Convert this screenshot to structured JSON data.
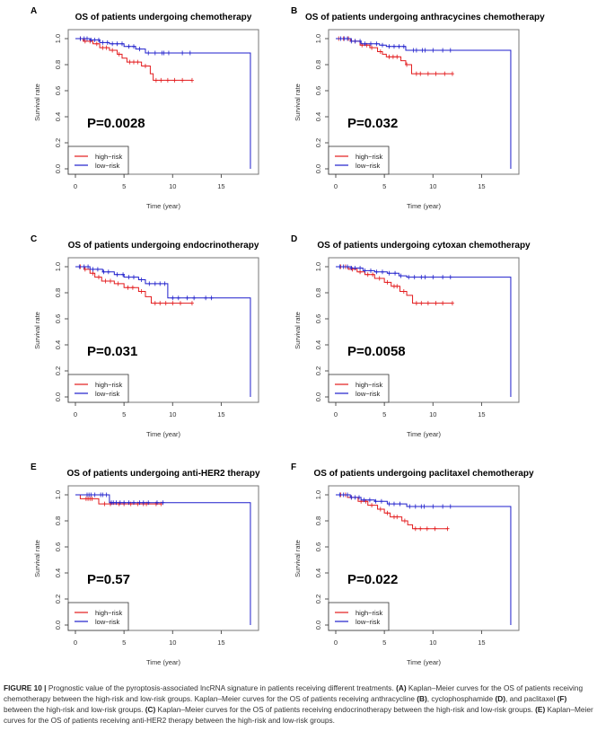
{
  "caption": {
    "label": "FIGURE 10 |",
    "text1": " Prognostic value of the pyroptosis-associated lncRNA signature in patients receiving different treatments. ",
    "a": "(A)",
    "text2": " Kaplan–Meier curves for the OS of patients receiving chemotherapy between the high-risk and low-risk groups. Kaplan–Meier curves for the OS of patients receiving anthracycline ",
    "b": "(B)",
    "text3": ", cyclophosphamide ",
    "d": "(D)",
    "text4": ", and paclitaxel ",
    "f": "(F)",
    "text5": " between the high-risk and low-risk groups. ",
    "c": "(C)",
    "text6": " Kaplan–Meier curves for the OS of patients receiving endocrinotherapy between the high-risk and low-risk groups. ",
    "e": "(E)",
    "text7": " Kaplan–Meier curves for the OS of patients receiving anti-HER2 therapy between the high-risk and low-risk groups."
  },
  "colors": {
    "high": "#e31a1c",
    "low": "#1f1fcc"
  },
  "chart_data": [
    {
      "panel": "A",
      "type": "line",
      "title": "OS of patients undergoing chemotherapy",
      "xlabel": "Time (year)",
      "ylabel": "Survival rate",
      "xlim": [
        0,
        18
      ],
      "ylim": [
        0,
        1
      ],
      "xticks": [
        "0",
        "5",
        "10",
        "15"
      ],
      "yticks": [
        "0.0",
        "0.2",
        "0.4",
        "0.6",
        "0.8",
        "1.0"
      ],
      "pvalue": "P=0.0028",
      "legend": [
        "high−risk",
        "low−risk"
      ],
      "legend_position": "bottom-left",
      "series": [
        {
          "name": "high-risk",
          "steps": [
            [
              0,
              1
            ],
            [
              0.8,
              0.98
            ],
            [
              1.8,
              0.96
            ],
            [
              2.5,
              0.93
            ],
            [
              3.5,
              0.91
            ],
            [
              4.3,
              0.88
            ],
            [
              4.8,
              0.85
            ],
            [
              5.3,
              0.82
            ],
            [
              6.8,
              0.79
            ],
            [
              7.7,
              0.73
            ],
            [
              8,
              0.68
            ]
          ],
          "end": 12,
          "censor": [
            0.5,
            1,
            1.5,
            2.2,
            2.8,
            3.2,
            3.8,
            4.5,
            5.6,
            6,
            6.4,
            7.2,
            8.3,
            8.8,
            9.5,
            10.2,
            11,
            12
          ]
        },
        {
          "name": "low-risk",
          "steps": [
            [
              0,
              1
            ],
            [
              1.5,
              0.99
            ],
            [
              2.5,
              0.97
            ],
            [
              3.5,
              0.96
            ],
            [
              5,
              0.94
            ],
            [
              6.2,
              0.92
            ],
            [
              7.2,
              0.89
            ]
          ],
          "end": 18,
          "endDrop": 0,
          "censor": [
            0.5,
            0.9,
            1.2,
            1.6,
            2,
            2.4,
            2.8,
            3.3,
            3.8,
            4.3,
            4.8,
            5.5,
            6,
            6.6,
            7.5,
            8.2,
            8.9,
            9.1,
            9.6,
            11,
            11.8
          ]
        }
      ]
    },
    {
      "panel": "B",
      "type": "line",
      "title": "OS of patients undergoing anthracycines chemotherapy",
      "xlabel": "Time (year)",
      "ylabel": "Survival rate",
      "xlim": [
        0,
        18
      ],
      "ylim": [
        0,
        1
      ],
      "xticks": [
        "0",
        "5",
        "10",
        "15"
      ],
      "yticks": [
        "0.0",
        "0.2",
        "0.4",
        "0.6",
        "0.8",
        "1.0"
      ],
      "pvalue": "P=0.032",
      "legend": [
        "high−risk",
        "low−risk"
      ],
      "legend_position": "bottom-left",
      "series": [
        {
          "name": "high-risk",
          "steps": [
            [
              0,
              1
            ],
            [
              1.5,
              0.98
            ],
            [
              2.5,
              0.95
            ],
            [
              3.5,
              0.93
            ],
            [
              4.3,
              0.9
            ],
            [
              4.8,
              0.88
            ],
            [
              5.2,
              0.86
            ],
            [
              6.7,
              0.83
            ],
            [
              7.2,
              0.8
            ],
            [
              7.8,
              0.73
            ]
          ],
          "end": 12,
          "censor": [
            0.3,
            0.8,
            1.3,
            2,
            2.7,
            3.2,
            3.7,
            4.6,
            5.5,
            5.9,
            6.3,
            7.3,
            8.3,
            8.7,
            9.5,
            10.3,
            11.2,
            12
          ]
        },
        {
          "name": "low-risk",
          "steps": [
            [
              0,
              1
            ],
            [
              1.6,
              0.98
            ],
            [
              2.6,
              0.96
            ],
            [
              4.5,
              0.95
            ],
            [
              5.2,
              0.94
            ],
            [
              7.2,
              0.91
            ]
          ],
          "end": 18,
          "endDrop": 0,
          "censor": [
            0.5,
            0.9,
            1.2,
            1.6,
            2,
            2.5,
            3,
            3.6,
            4.2,
            4.8,
            5.5,
            6,
            6.5,
            7,
            8,
            8.3,
            8.9,
            9.2,
            10,
            11,
            11.8
          ]
        }
      ]
    },
    {
      "panel": "C",
      "type": "line",
      "title": "OS of patients undergoing endocrinotherapy",
      "xlabel": "Time (year)",
      "ylabel": "Survival rate",
      "xlim": [
        0,
        18
      ],
      "ylim": [
        0,
        1
      ],
      "xticks": [
        "0",
        "5",
        "10",
        "15"
      ],
      "yticks": [
        "0.0",
        "0.2",
        "0.4",
        "0.6",
        "0.8",
        "1.0"
      ],
      "pvalue": "P=0.031",
      "legend": [
        "high−risk",
        "low−risk"
      ],
      "legend_position": "bottom-left",
      "series": [
        {
          "name": "high-risk",
          "steps": [
            [
              0,
              1
            ],
            [
              0.9,
              0.98
            ],
            [
              1.5,
              0.95
            ],
            [
              2,
              0.92
            ],
            [
              2.7,
              0.89
            ],
            [
              4,
              0.87
            ],
            [
              5,
              0.84
            ],
            [
              6.5,
              0.81
            ],
            [
              7.2,
              0.77
            ],
            [
              7.8,
              0.72
            ]
          ],
          "end": 12,
          "censor": [
            0.5,
            1,
            1.8,
            2.4,
            3.1,
            3.6,
            4.4,
            5.4,
            5.9,
            6.8,
            8.2,
            8.7,
            9.3,
            10,
            10.8,
            12
          ]
        },
        {
          "name": "low-risk",
          "steps": [
            [
              0,
              1
            ],
            [
              1.5,
              0.98
            ],
            [
              2.8,
              0.96
            ],
            [
              4,
              0.94
            ],
            [
              5,
              0.92
            ],
            [
              6.5,
              0.9
            ],
            [
              7.2,
              0.87
            ],
            [
              9.5,
              0.76
            ]
          ],
          "end": 18,
          "endDrop": 0,
          "censor": [
            0.4,
            0.9,
            1.3,
            1.8,
            2.3,
            2.9,
            3.4,
            4.3,
            4.9,
            5.5,
            6,
            6.8,
            7.6,
            8.2,
            8.7,
            9.2,
            10,
            10.6,
            11.5,
            12.2,
            13.4,
            14
          ]
        }
      ]
    },
    {
      "panel": "D",
      "type": "line",
      "title": "OS of patients undergoing cytoxan chemotherapy",
      "xlabel": "Time (year)",
      "ylabel": "Survival rate",
      "xlim": [
        0,
        18
      ],
      "ylim": [
        0,
        1
      ],
      "xticks": [
        "0",
        "5",
        "10",
        "15"
      ],
      "yticks": [
        "0.0",
        "0.2",
        "0.4",
        "0.6",
        "0.8",
        "1.0"
      ],
      "pvalue": "P=0.0058",
      "legend": [
        "high−risk",
        "low−risk"
      ],
      "legend_position": "bottom-left",
      "series": [
        {
          "name": "high-risk",
          "steps": [
            [
              0,
              1
            ],
            [
              1.3,
              0.98
            ],
            [
              2.2,
              0.96
            ],
            [
              3,
              0.94
            ],
            [
              4,
              0.91
            ],
            [
              5,
              0.88
            ],
            [
              5.7,
              0.85
            ],
            [
              6.6,
              0.81
            ],
            [
              7.3,
              0.78
            ],
            [
              7.9,
              0.72
            ]
          ],
          "end": 12,
          "censor": [
            0.5,
            1,
            1.7,
            2.5,
            3.3,
            3.8,
            4.5,
            5.3,
            6,
            6.3,
            7,
            8.3,
            8.8,
            9.5,
            10.3,
            11,
            12
          ]
        },
        {
          "name": "low-risk",
          "steps": [
            [
              0,
              1
            ],
            [
              1.6,
              0.99
            ],
            [
              2.8,
              0.97
            ],
            [
              4,
              0.96
            ],
            [
              5.3,
              0.95
            ],
            [
              6.5,
              0.93
            ],
            [
              7.3,
              0.92
            ]
          ],
          "end": 18,
          "endDrop": 0,
          "censor": [
            0.4,
            0.8,
            1.2,
            1.6,
            2,
            2.5,
            3,
            3.6,
            4.2,
            4.8,
            5.5,
            6.1,
            6.7,
            7.5,
            8.1,
            8.8,
            9.2,
            10,
            11,
            11.8
          ]
        }
      ]
    },
    {
      "panel": "E",
      "type": "line",
      "title": "OS of patients undergoing anti-HER2 therapy",
      "xlabel": "Time (year)",
      "ylabel": "Survival rate",
      "xlim": [
        0,
        18
      ],
      "ylim": [
        0,
        1
      ],
      "xticks": [
        "0",
        "5",
        "10",
        "15"
      ],
      "yticks": [
        "0.0",
        "0.2",
        "0.4",
        "0.6",
        "0.8",
        "1.0"
      ],
      "pvalue": "P=0.57",
      "legend": [
        "high−risk",
        "low−risk"
      ],
      "legend_position": "bottom-left",
      "series": [
        {
          "name": "high-risk",
          "steps": [
            [
              0,
              1
            ],
            [
              0.5,
              0.97
            ],
            [
              2.4,
              0.93
            ]
          ],
          "end": 8.8,
          "censor": [
            1.1,
            1.3,
            1.5,
            1.7,
            3,
            3.6,
            4.5,
            5,
            5.7,
            6.4,
            7,
            7.3,
            8.3,
            8.8
          ]
        },
        {
          "name": "low-risk",
          "steps": [
            [
              0,
              1
            ],
            [
              3.5,
              0.94
            ]
          ],
          "end": 18,
          "endDrop": 0,
          "censor": [
            1.2,
            1.4,
            1.6,
            2,
            2.6,
            2.8,
            3.2,
            3.7,
            3.9,
            4.2,
            4.6,
            5,
            5.5,
            6,
            6.6,
            7,
            7.5,
            8.4,
            9
          ]
        }
      ]
    },
    {
      "panel": "F",
      "type": "line",
      "title": "OS of patients undergoing paclitaxel chemotherapy",
      "xlabel": "Time (year)",
      "ylabel": "Survival rate",
      "xlim": [
        0,
        18
      ],
      "ylim": [
        0,
        1
      ],
      "xticks": [
        "0",
        "5",
        "10",
        "15"
      ],
      "yticks": [
        "0.0",
        "0.2",
        "0.4",
        "0.6",
        "0.8",
        "1.0"
      ],
      "pvalue": "P=0.022",
      "legend": [
        "high−risk",
        "low−risk"
      ],
      "legend_position": "bottom-left",
      "series": [
        {
          "name": "high-risk",
          "steps": [
            [
              0,
              1
            ],
            [
              1.2,
              0.98
            ],
            [
              2.3,
              0.95
            ],
            [
              3.3,
              0.92
            ],
            [
              4.3,
              0.89
            ],
            [
              5,
              0.86
            ],
            [
              5.6,
              0.83
            ],
            [
              6.8,
              0.8
            ],
            [
              7.4,
              0.77
            ],
            [
              7.9,
              0.74
            ]
          ],
          "end": 11.5,
          "censor": [
            0.5,
            1,
            1.6,
            2.6,
            3.1,
            3.7,
            4.6,
            5.3,
            6,
            6.3,
            7.1,
            8.2,
            8.7,
            9.4,
            10.2,
            11.5
          ]
        },
        {
          "name": "low-risk",
          "steps": [
            [
              0,
              1
            ],
            [
              1.5,
              0.98
            ],
            [
              2.6,
              0.96
            ],
            [
              4,
              0.95
            ],
            [
              5.3,
              0.93
            ],
            [
              7.3,
              0.91
            ]
          ],
          "end": 18,
          "endDrop": 0,
          "censor": [
            0.4,
            0.8,
            1.2,
            1.6,
            2,
            2.4,
            2.9,
            3.5,
            4.1,
            4.7,
            5.5,
            6,
            6.6,
            7.6,
            8.2,
            8.8,
            9.1,
            10,
            11,
            11.8
          ]
        }
      ]
    }
  ]
}
